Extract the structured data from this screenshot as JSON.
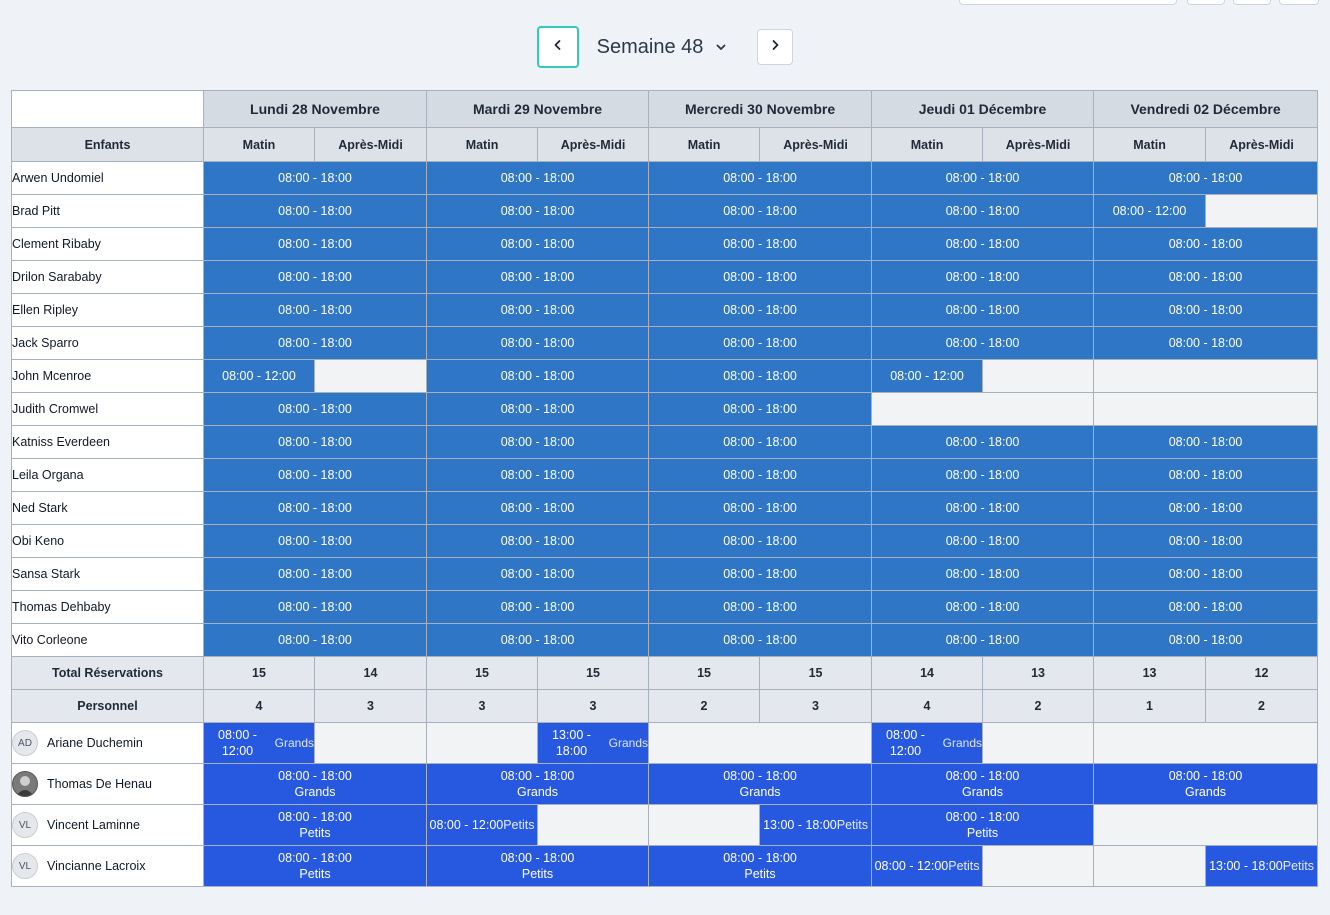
{
  "nav": {
    "week_label": "Semaine 48"
  },
  "table": {
    "corner": "",
    "days": [
      "Lundi 28 Novembre",
      "Mardi 29 Novembre",
      "Mercredi 30 Novembre",
      "Jeudi 01 Décembre",
      "Vendredi 02 Décembre"
    ],
    "children_header": "Enfants",
    "morning_label": "Matin",
    "afternoon_label": "Après-Midi",
    "children": [
      {
        "name": "Arwen Undomiel",
        "days": [
          {
            "type": "full",
            "text": "08:00 - 18:00"
          },
          {
            "type": "full",
            "text": "08:00 - 18:00"
          },
          {
            "type": "full",
            "text": "08:00 - 18:00"
          },
          {
            "type": "full",
            "text": "08:00 - 18:00"
          },
          {
            "type": "full",
            "text": "08:00 - 18:00"
          }
        ]
      },
      {
        "name": "Brad Pitt",
        "days": [
          {
            "type": "full",
            "text": "08:00 - 18:00"
          },
          {
            "type": "full",
            "text": "08:00 - 18:00"
          },
          {
            "type": "full",
            "text": "08:00 - 18:00"
          },
          {
            "type": "full",
            "text": "08:00 - 18:00"
          },
          {
            "type": "am",
            "text": "08:00 - 12:00"
          }
        ]
      },
      {
        "name": "Clement Ribaby",
        "days": [
          {
            "type": "full",
            "text": "08:00 - 18:00"
          },
          {
            "type": "full",
            "text": "08:00 - 18:00"
          },
          {
            "type": "full",
            "text": "08:00 - 18:00"
          },
          {
            "type": "full",
            "text": "08:00 - 18:00"
          },
          {
            "type": "full",
            "text": "08:00 - 18:00"
          }
        ]
      },
      {
        "name": "Drilon Sarababy",
        "days": [
          {
            "type": "full",
            "text": "08:00 - 18:00"
          },
          {
            "type": "full",
            "text": "08:00 - 18:00"
          },
          {
            "type": "full",
            "text": "08:00 - 18:00"
          },
          {
            "type": "full",
            "text": "08:00 - 18:00"
          },
          {
            "type": "full",
            "text": "08:00 - 18:00"
          }
        ]
      },
      {
        "name": "Ellen Ripley",
        "days": [
          {
            "type": "full",
            "text": "08:00 - 18:00"
          },
          {
            "type": "full",
            "text": "08:00 - 18:00"
          },
          {
            "type": "full",
            "text": "08:00 - 18:00"
          },
          {
            "type": "full",
            "text": "08:00 - 18:00"
          },
          {
            "type": "full",
            "text": "08:00 - 18:00"
          }
        ]
      },
      {
        "name": "Jack Sparro",
        "days": [
          {
            "type": "full",
            "text": "08:00 - 18:00"
          },
          {
            "type": "full",
            "text": "08:00 - 18:00"
          },
          {
            "type": "full",
            "text": "08:00 - 18:00"
          },
          {
            "type": "full",
            "text": "08:00 - 18:00"
          },
          {
            "type": "full",
            "text": "08:00 - 18:00"
          }
        ]
      },
      {
        "name": "John Mcenroe",
        "days": [
          {
            "type": "am",
            "text": "08:00 - 12:00"
          },
          {
            "type": "full",
            "text": "08:00 - 18:00"
          },
          {
            "type": "full",
            "text": "08:00 - 18:00"
          },
          {
            "type": "am",
            "text": "08:00 - 12:00"
          },
          {
            "type": "none",
            "text": ""
          }
        ]
      },
      {
        "name": "Judith Cromwel",
        "days": [
          {
            "type": "full",
            "text": "08:00 - 18:00"
          },
          {
            "type": "full",
            "text": "08:00 - 18:00"
          },
          {
            "type": "full",
            "text": "08:00 - 18:00"
          },
          {
            "type": "none",
            "text": ""
          },
          {
            "type": "none",
            "text": ""
          }
        ]
      },
      {
        "name": "Katniss Everdeen",
        "days": [
          {
            "type": "full",
            "text": "08:00 - 18:00"
          },
          {
            "type": "full",
            "text": "08:00 - 18:00"
          },
          {
            "type": "full",
            "text": "08:00 - 18:00"
          },
          {
            "type": "full",
            "text": "08:00 - 18:00"
          },
          {
            "type": "full",
            "text": "08:00 - 18:00"
          }
        ]
      },
      {
        "name": "Leila Organa",
        "days": [
          {
            "type": "full",
            "text": "08:00 - 18:00"
          },
          {
            "type": "full",
            "text": "08:00 - 18:00"
          },
          {
            "type": "full",
            "text": "08:00 - 18:00"
          },
          {
            "type": "full",
            "text": "08:00 - 18:00"
          },
          {
            "type": "full",
            "text": "08:00 - 18:00"
          }
        ]
      },
      {
        "name": "Ned Stark",
        "days": [
          {
            "type": "full",
            "text": "08:00 - 18:00"
          },
          {
            "type": "full",
            "text": "08:00 - 18:00"
          },
          {
            "type": "full",
            "text": "08:00 - 18:00"
          },
          {
            "type": "full",
            "text": "08:00 - 18:00"
          },
          {
            "type": "full",
            "text": "08:00 - 18:00"
          }
        ]
      },
      {
        "name": "Obi Keno",
        "days": [
          {
            "type": "full",
            "text": "08:00 - 18:00"
          },
          {
            "type": "full",
            "text": "08:00 - 18:00"
          },
          {
            "type": "full",
            "text": "08:00 - 18:00"
          },
          {
            "type": "full",
            "text": "08:00 - 18:00"
          },
          {
            "type": "full",
            "text": "08:00 - 18:00"
          }
        ]
      },
      {
        "name": "Sansa Stark",
        "days": [
          {
            "type": "full",
            "text": "08:00 - 18:00"
          },
          {
            "type": "full",
            "text": "08:00 - 18:00"
          },
          {
            "type": "full",
            "text": "08:00 - 18:00"
          },
          {
            "type": "full",
            "text": "08:00 - 18:00"
          },
          {
            "type": "full",
            "text": "08:00 - 18:00"
          }
        ]
      },
      {
        "name": "Thomas Dehbaby",
        "days": [
          {
            "type": "full",
            "text": "08:00 - 18:00"
          },
          {
            "type": "full",
            "text": "08:00 - 18:00"
          },
          {
            "type": "full",
            "text": "08:00 - 18:00"
          },
          {
            "type": "full",
            "text": "08:00 - 18:00"
          },
          {
            "type": "full",
            "text": "08:00 - 18:00"
          }
        ]
      },
      {
        "name": "Vito Corleone",
        "days": [
          {
            "type": "full",
            "text": "08:00 - 18:00"
          },
          {
            "type": "full",
            "text": "08:00 - 18:00"
          },
          {
            "type": "full",
            "text": "08:00 - 18:00"
          },
          {
            "type": "full",
            "text": "08:00 - 18:00"
          },
          {
            "type": "full",
            "text": "08:00 - 18:00"
          }
        ]
      }
    ],
    "total_label": "Total Réservations",
    "totals": [
      "15",
      "14",
      "15",
      "15",
      "15",
      "15",
      "14",
      "13",
      "13",
      "12"
    ],
    "staff_count_label": "Personnel",
    "staff_counts": [
      "4",
      "3",
      "3",
      "3",
      "2",
      "3",
      "4",
      "2",
      "1",
      "2"
    ],
    "staff": [
      {
        "name": "Ariane Duchemin",
        "initials": "AD",
        "photo": false,
        "days": [
          {
            "type": "am",
            "time1": "08:00 -",
            "time2": "12:00",
            "group": "Grands"
          },
          {
            "type": "pm",
            "time1": "13:00 -",
            "time2": "18:00",
            "group": "Grands"
          },
          {
            "type": "none"
          },
          {
            "type": "am",
            "time1": "08:00 -",
            "time2": "12:00",
            "group": "Grands"
          },
          {
            "type": "none"
          }
        ]
      },
      {
        "name": "Thomas De Henau",
        "initials": "",
        "photo": true,
        "days": [
          {
            "type": "full",
            "time": "08:00 - 18:00",
            "group": "Grands"
          },
          {
            "type": "full",
            "time": "08:00 - 18:00",
            "group": "Grands"
          },
          {
            "type": "full",
            "time": "08:00 - 18:00",
            "group": "Grands"
          },
          {
            "type": "full",
            "time": "08:00 - 18:00",
            "group": "Grands"
          },
          {
            "type": "full",
            "time": "08:00 - 18:00",
            "group": "Grands"
          }
        ]
      },
      {
        "name": "Vincent Laminne",
        "initials": "VL",
        "photo": false,
        "days": [
          {
            "type": "full",
            "time": "08:00 - 18:00",
            "group": "Petits"
          },
          {
            "type": "am-inline",
            "time": "08:00 - 12:00",
            "group": "Petits"
          },
          {
            "type": "pm-inline",
            "time": "13:00 - 18:00",
            "group": "Petits"
          },
          {
            "type": "full",
            "time": "08:00 - 18:00",
            "group": "Petits"
          },
          {
            "type": "none"
          }
        ]
      },
      {
        "name": "Vincianne Lacroix",
        "initials": "VL",
        "photo": false,
        "days": [
          {
            "type": "full",
            "time": "08:00 - 18:00",
            "group": "Petits"
          },
          {
            "type": "full",
            "time": "08:00 - 18:00",
            "group": "Petits"
          },
          {
            "type": "full",
            "time": "08:00 - 18:00",
            "group": "Petits"
          },
          {
            "type": "am-inline",
            "time": "08:00 - 12:00",
            "group": "Petits"
          },
          {
            "type": "pm-inline",
            "time": "13:00 - 18:00",
            "group": "Petits"
          }
        ]
      }
    ]
  },
  "colors": {
    "child_booking": "#2f77c6",
    "staff_booking": "#2759e0",
    "empty_slot": "#f2f3f5",
    "focus_ring": "#3cc4c0"
  },
  "icons": {
    "prev": "chevron-left-icon",
    "next": "chevron-right-icon",
    "dropdown": "chevron-down-icon"
  }
}
